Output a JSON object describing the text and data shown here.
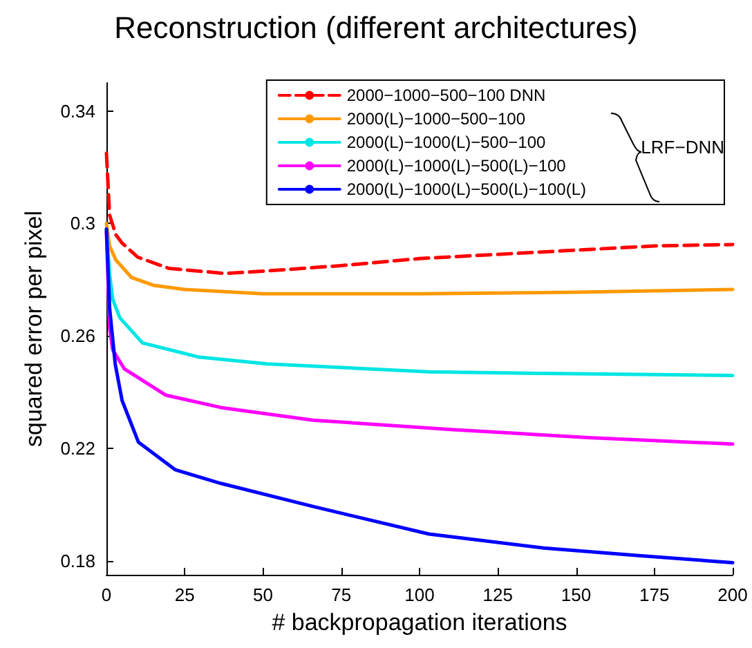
{
  "chart_data": {
    "type": "line",
    "title": "Reconstruction (different architectures)",
    "xlabel": "# backpropagation iterations",
    "ylabel": "squared error per pixel",
    "xlim": [
      0,
      200
    ],
    "xticks": [
      0,
      25,
      50,
      75,
      100,
      125,
      150,
      175,
      200
    ],
    "ylim": [
      0.175,
      0.35
    ],
    "yticks": [
      0.18,
      0.22,
      0.26,
      0.3,
      0.34
    ],
    "grid": false,
    "legend": "top right",
    "marker": "none",
    "annotations": [
      "LRF−DNN"
    ],
    "series": [
      {
        "name": "2000−1000−500−100 DNN",
        "color": "#ff0000",
        "line_style": "dashed",
        "x": [
          0,
          1,
          3,
          5,
          10,
          20,
          38,
          50,
          75,
          100,
          125,
          150,
          175,
          200
        ],
        "values": [
          0.325,
          0.303,
          0.296,
          0.293,
          0.288,
          0.284,
          0.2822,
          0.283,
          0.285,
          0.2875,
          0.289,
          0.2905,
          0.292,
          0.2925
        ]
      },
      {
        "name": "2000(L)−1000−500−100",
        "color": "#ff9900",
        "line_style": "solid",
        "x": [
          0,
          1,
          3,
          8,
          15,
          25,
          50,
          100,
          150,
          200
        ],
        "values": [
          0.3,
          0.292,
          0.287,
          0.2808,
          0.278,
          0.2765,
          0.275,
          0.275,
          0.2755,
          0.2765
        ]
      },
      {
        "name": "2000(L)−1000(L)−500−100",
        "color": "#00e5e5",
        "line_style": "solid",
        "x": [
          0,
          1,
          2,
          4.3,
          11.5,
          29.3,
          51.4,
          103,
          150,
          200
        ],
        "values": [
          0.298,
          0.282,
          0.273,
          0.2664,
          0.2575,
          0.2525,
          0.25,
          0.2472,
          0.2465,
          0.2459
        ]
      },
      {
        "name": "2000(L)−1000(L)−500(L)−100",
        "color": "#ff00ff",
        "line_style": "solid",
        "x": [
          0,
          1,
          2,
          5.7,
          19,
          36.6,
          66,
          110,
          154,
          200
        ],
        "values": [
          0.297,
          0.263,
          0.255,
          0.2483,
          0.2389,
          0.2345,
          0.23,
          0.2267,
          0.2238,
          0.2215
        ]
      },
      {
        "name": "2000(L)−1000(L)−500(L)−100(L)",
        "color": "#0000ff",
        "line_style": "solid",
        "x": [
          0,
          1,
          2.8,
          5,
          10.2,
          21.9,
          36.6,
          66,
          103,
          139.6,
          170,
          200
        ],
        "values": [
          0.298,
          0.27,
          0.25,
          0.237,
          0.2222,
          0.2124,
          0.2075,
          0.1993,
          0.1895,
          0.1845,
          0.1818,
          0.1793
        ]
      }
    ]
  }
}
